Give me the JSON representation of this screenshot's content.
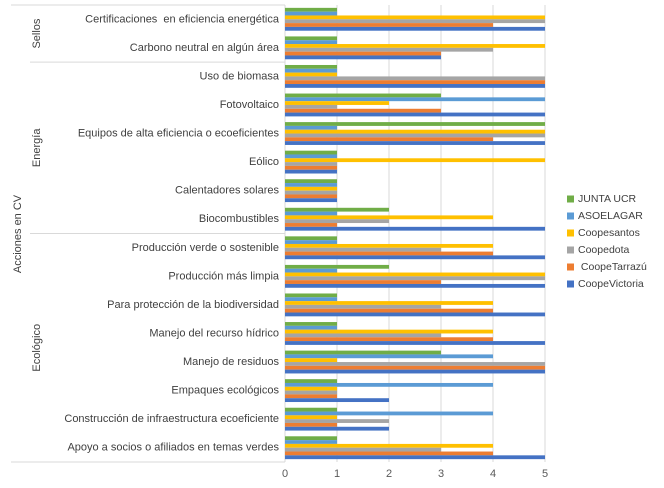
{
  "chart_data": {
    "type": "bar",
    "orientation": "horizontal",
    "title": "",
    "xlabel": "",
    "ylabel": "Acciones en CV",
    "xlim": [
      0,
      5
    ],
    "xticks": [
      0,
      1,
      2,
      3,
      4,
      5
    ],
    "grid": true,
    "legend_position": "right",
    "groups": [
      {
        "label": "Sellos",
        "count": 2
      },
      {
        "label": "Energía",
        "count": 6
      },
      {
        "label": "Ecológico",
        "count": 8
      }
    ],
    "categories": [
      "Certificaciones  en eficiencia energética",
      "Carbono neutral en algún área",
      "Uso de biomasa",
      "Fotovoltaico",
      "Equipos de alta eficiencia o ecoeficientes",
      "Eólico",
      "Calentadores solares",
      "Biocombustibles",
      "Producción verde o sostenible",
      "Producción más limpia",
      "Para protección de la biodiversidad",
      "Manejo del recurso hídrico",
      "Manejo de residuos",
      "Empaques ecológicos",
      "Construcción de infraestructura ecoeficiente",
      "Apoyo a socios o afiliados en temas verdes"
    ],
    "series": [
      {
        "name": "JUNTA UCR",
        "color": "#70AD47",
        "values": [
          1,
          1,
          1,
          3,
          5,
          1,
          1,
          2,
          1,
          2,
          1,
          1,
          3,
          1,
          1,
          1
        ]
      },
      {
        "name": "ASOELAGAR",
        "color": "#5B9BD5",
        "values": [
          1,
          1,
          1,
          5,
          1,
          1,
          1,
          1,
          1,
          1,
          1,
          1,
          4,
          4,
          4,
          1
        ]
      },
      {
        "name": "Coopesantos",
        "color": "#FFC000",
        "values": [
          5,
          5,
          1,
          2,
          5,
          5,
          1,
          4,
          4,
          5,
          4,
          4,
          1,
          1,
          1,
          4
        ]
      },
      {
        "name": "Coopedota",
        "color": "#A5A5A5",
        "values": [
          5,
          4,
          5,
          1,
          5,
          1,
          1,
          2,
          3,
          5,
          3,
          3,
          5,
          1,
          2,
          3
        ]
      },
      {
        "name": " CoopeTarrazú",
        "color": "#ED7D31",
        "values": [
          4,
          3,
          5,
          3,
          4,
          1,
          1,
          1,
          4,
          3,
          4,
          4,
          5,
          1,
          1,
          4
        ]
      },
      {
        "name": "CoopeVictoria",
        "color": "#4472C4",
        "values": [
          5,
          3,
          5,
          5,
          5,
          1,
          1,
          5,
          5,
          5,
          5,
          5,
          5,
          2,
          2,
          5
        ]
      }
    ]
  }
}
